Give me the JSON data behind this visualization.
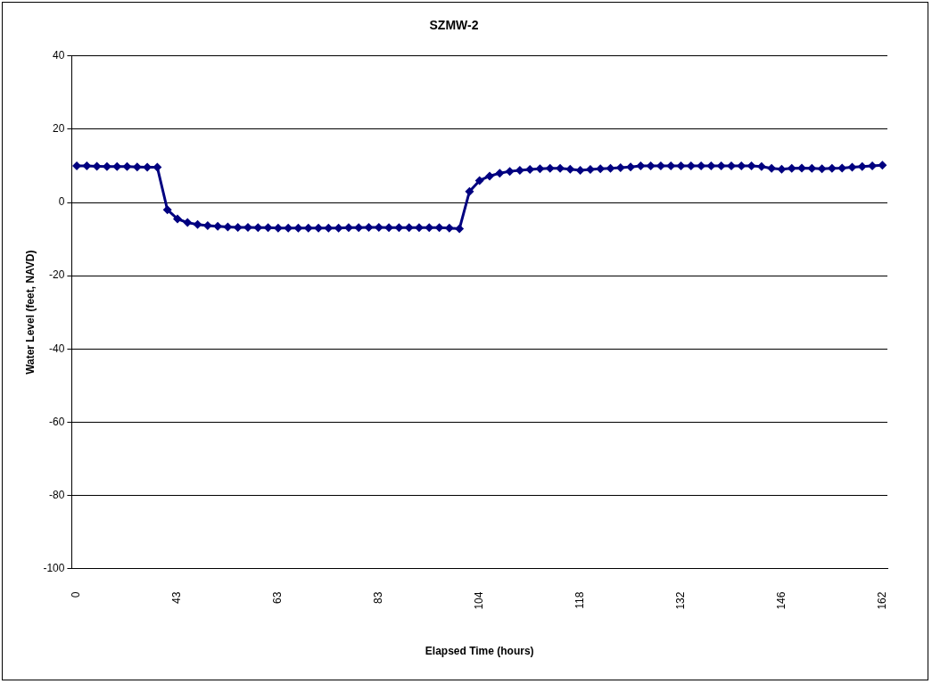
{
  "chart_data": {
    "type": "line",
    "title": "SZMW-2",
    "xlabel": "Elapsed Time (hours)",
    "ylabel": "Water Level (feet, NAVD)",
    "categories": [
      "0",
      null,
      null,
      null,
      null,
      null,
      null,
      null,
      null,
      null,
      "43",
      null,
      null,
      null,
      null,
      null,
      null,
      null,
      null,
      null,
      "63",
      null,
      null,
      null,
      null,
      null,
      null,
      null,
      null,
      null,
      "83",
      null,
      null,
      null,
      null,
      null,
      null,
      null,
      null,
      null,
      "104",
      null,
      null,
      null,
      null,
      null,
      null,
      null,
      null,
      null,
      "118",
      null,
      null,
      null,
      null,
      null,
      null,
      null,
      null,
      null,
      "132",
      null,
      null,
      null,
      null,
      null,
      null,
      null,
      null,
      null,
      "146",
      null,
      null,
      null,
      null,
      null,
      null,
      null,
      null,
      null,
      "162"
    ],
    "series": [
      {
        "color": "#000080",
        "values": [
          10,
          10,
          9.9,
          9.8,
          9.8,
          9.8,
          9.7,
          9.6,
          9.6,
          -2,
          -4.5,
          -5.5,
          -6,
          -6.3,
          -6.5,
          -6.7,
          -6.8,
          -6.8,
          -6.9,
          -6.9,
          -7,
          -7,
          -7,
          -7,
          -7,
          -7,
          -7,
          -6.9,
          -6.9,
          -6.8,
          -6.8,
          -6.9,
          -6.9,
          -6.9,
          -6.9,
          -6.9,
          -6.9,
          -7,
          -7.2,
          3,
          6,
          7.2,
          8,
          8.5,
          8.8,
          9,
          9.2,
          9.3,
          9.3,
          9.1,
          8.8,
          9,
          9.2,
          9.3,
          9.5,
          9.7,
          10,
          10,
          10,
          10,
          10,
          10,
          10,
          10,
          10,
          10,
          10,
          10,
          9.8,
          9.3,
          9.1,
          9.3,
          9.4,
          9.3,
          9.2,
          9.3,
          9.4,
          9.6,
          9.8,
          10,
          10.2
        ]
      }
    ],
    "ylim": [
      -100,
      40
    ],
    "yticks": [
      -100,
      -80,
      -60,
      -40,
      -20,
      0,
      20,
      40
    ],
    "grid": "y",
    "legend": false,
    "marker": "diamond",
    "line_style": "solid"
  }
}
